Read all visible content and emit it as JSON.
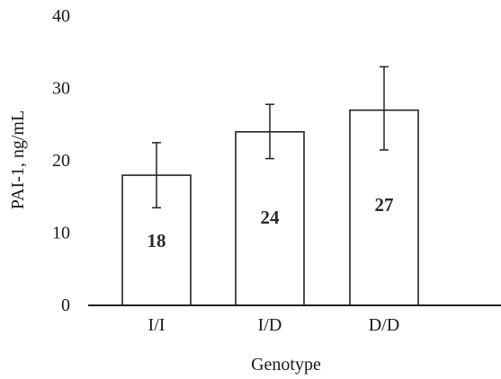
{
  "chart_data": {
    "type": "bar",
    "categories": [
      "I/I",
      "I/D",
      "D/D"
    ],
    "values": [
      18,
      24,
      27
    ],
    "error_low": [
      13.5,
      20.3,
      21.5
    ],
    "error_high": [
      22.5,
      27.8,
      33.0
    ],
    "data_labels": [
      "18",
      "24",
      "27"
    ],
    "title": "",
    "xlabel": "Genotype",
    "ylabel": "PAI-1, ng/mL",
    "ylim": [
      0,
      40
    ],
    "yticks": [
      "0",
      "10",
      "20",
      "30",
      "40"
    ],
    "grid": false,
    "legend": "none",
    "colors": {
      "bar_fill": "#ffffff",
      "bar_stroke": "#222222",
      "axis": "#222222"
    }
  }
}
